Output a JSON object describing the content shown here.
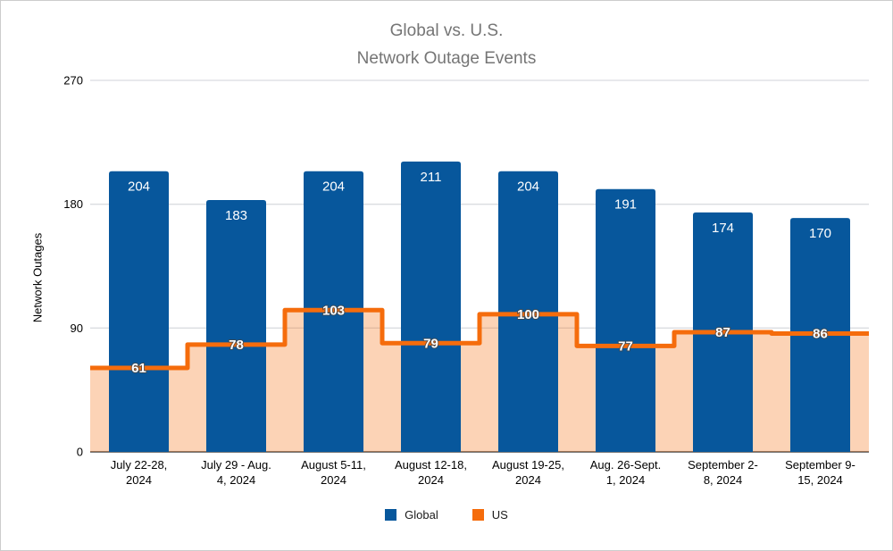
{
  "window": {
    "background": "#ffffff",
    "border_color": "#cccccc"
  },
  "title": {
    "line1": "Global vs. U.S.",
    "line2": "Network Outage Events",
    "color": "#757575"
  },
  "chart_data": {
    "type": "combo",
    "categories": [
      "July 22-28,\n2024",
      "July 29 - Aug.\n4, 2024",
      "August 5-11,\n2024",
      "August 12-18,\n2024",
      "August 19-25,\n2024",
      "Aug. 26-Sept.\n1, 2024",
      "September 2-\n8, 2024",
      "September 9-\n15, 2024"
    ],
    "series": [
      {
        "name": "Global",
        "type": "bar",
        "color": "#07579C",
        "label_color": "#ffffff",
        "values": [
          204,
          183,
          204,
          211,
          204,
          191,
          174,
          170
        ]
      },
      {
        "name": "US",
        "type": "step_area",
        "line_color": "#F56C0C",
        "area_fill_rgba": "rgba(245,108,12,0.30)",
        "label_color": "#ffffff",
        "values": [
          61,
          78,
          103,
          79,
          100,
          77,
          87,
          86
        ]
      }
    ],
    "title": "Global vs. U.S. Network Outage Events",
    "xlabel": "",
    "ylabel": "Network Outages",
    "ylim": [
      0,
      270
    ],
    "yticks": [
      0,
      90,
      180,
      270
    ],
    "grid": true,
    "gridline_color": "#DADCE0",
    "axis_line_color": "#757575",
    "legend_position": "bottom"
  },
  "legend": {
    "items": [
      {
        "label": "Global",
        "color": "#07579C"
      },
      {
        "label": "US",
        "color": "#F56C0C"
      }
    ]
  }
}
